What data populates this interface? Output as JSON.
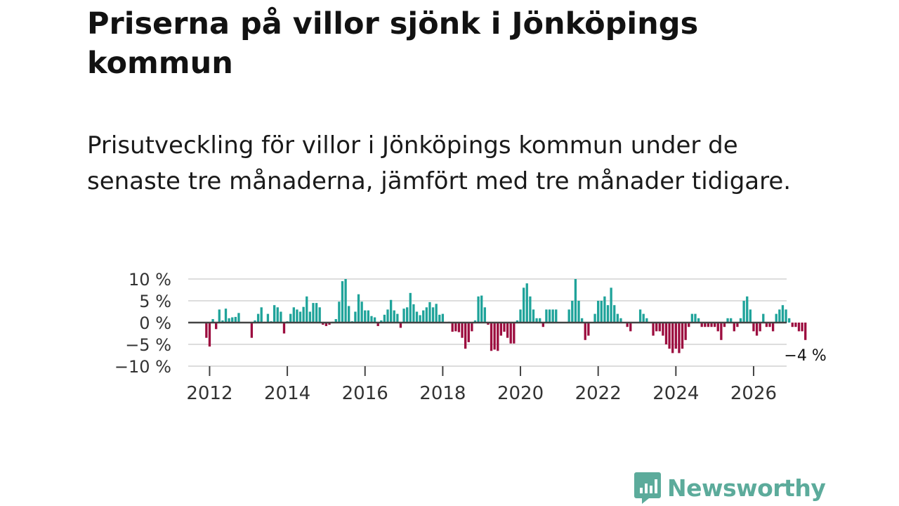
{
  "title": "Priserna på villor sjönk i Jönköpings kommun",
  "subtitle": "Prisutveckling för villor i Jönköpings kommun under de senaste tre månaderna, jämfört med tre månader tidigare.",
  "brand": {
    "name": "Newsworthy",
    "color": "#5cab9b"
  },
  "colors": {
    "positive": "#1fa39a",
    "negative": "#9c0d3f",
    "gridline": "#dddddd",
    "zeroline": "#444444"
  },
  "chart_data": {
    "type": "bar",
    "title": "Prisutveckling för villor i Jönköpings kommun",
    "ylabel": "%",
    "ylim": [
      -10,
      10
    ],
    "y_ticks": [
      10,
      5,
      0,
      -5,
      -10
    ],
    "y_tick_labels": [
      "10 %",
      "5 %",
      "0 %",
      "−5 %",
      "−10 %"
    ],
    "x_ticks": [
      2012,
      2014,
      2016,
      2018,
      2020,
      2022,
      2024,
      2026
    ],
    "x_tick_labels": [
      "2012",
      "2014",
      "2016",
      "2018",
      "2020",
      "2022",
      "2024",
      "2026"
    ],
    "x_start": 2011.917,
    "x_step": 0.08333,
    "last_label": "−4 %",
    "values": [
      -3.5,
      -5.5,
      0.8,
      -1.5,
      3,
      0.5,
      3.2,
      1,
      1.2,
      1.3,
      2.2,
      0,
      0,
      0,
      -3.5,
      0.5,
      2,
      3.5,
      0.2,
      2,
      0.3,
      4,
      3.5,
      2.5,
      -2.5,
      0.3,
      2,
      3.5,
      3,
      2.5,
      3.6,
      6,
      2.5,
      4.5,
      4.5,
      3.5,
      -0.5,
      -0.8,
      -0.5,
      0.2,
      0.8,
      4.8,
      9.5,
      10,
      3.8,
      0.3,
      2.5,
      6.5,
      4.8,
      2.8,
      2.8,
      1.5,
      1.2,
      -0.8,
      0.5,
      1.8,
      3,
      5.2,
      2.8,
      2,
      -1.2,
      3.2,
      3.5,
      6.8,
      4.2,
      2.5,
      1.7,
      2.8,
      3.5,
      4.7,
      3.5,
      4.3,
      1.8,
      2,
      0,
      0.2,
      -2.1,
      -2,
      -2.2,
      -3.5,
      -6,
      -4.5,
      -2,
      0.5,
      6,
      6.2,
      3.5,
      -0.5,
      -6.5,
      -6.2,
      -6.5,
      -3,
      -2.1,
      -3.5,
      -4.8,
      -4.8,
      0.5,
      3,
      8,
      9,
      6,
      3,
      1,
      1,
      -1,
      3,
      3,
      3,
      3,
      0,
      0,
      0,
      3,
      5,
      10,
      5,
      1,
      -4,
      -3,
      0,
      2,
      5,
      5,
      6,
      4,
      8,
      4,
      2,
      1,
      0,
      -1,
      -2,
      0,
      0,
      3,
      2,
      1,
      0,
      -3,
      -2,
      -2,
      -3,
      -5,
      -6,
      -7,
      -6,
      -7,
      -6,
      -4,
      -1,
      2,
      2,
      1,
      -1,
      -1,
      -1,
      -1,
      -1,
      -2,
      -4,
      -1,
      1,
      1,
      -2,
      -1,
      1,
      5,
      6,
      3,
      -2,
      -3,
      -2,
      2,
      -1,
      -1,
      -2,
      2,
      3,
      4,
      3,
      1,
      -1,
      -1,
      -2,
      -2,
      -4
    ]
  }
}
